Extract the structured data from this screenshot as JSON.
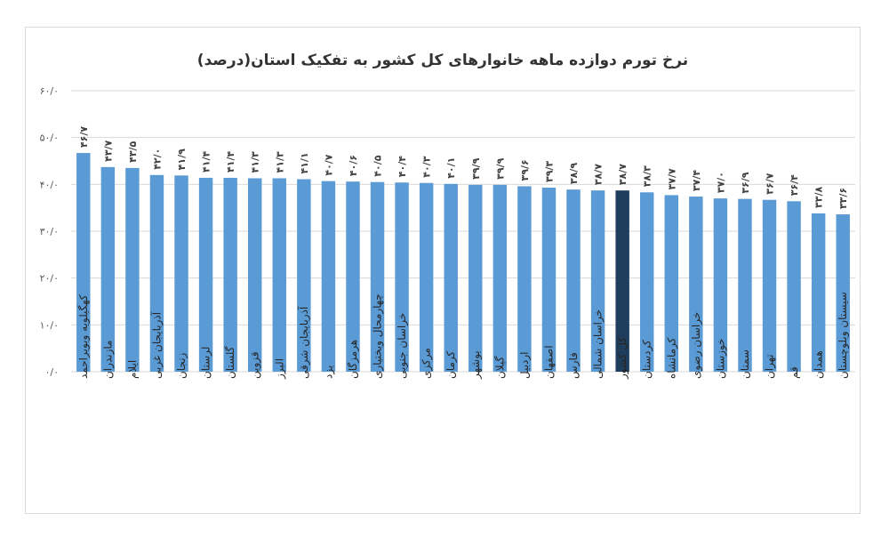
{
  "chart_data": {
    "type": "bar",
    "title": "نرخ تورم دوازده ماهه خانوارهای کل کشور به تفکیک استان(درصد)",
    "ylim": [
      0,
      60
    ],
    "yticks": [
      0,
      10,
      20,
      30,
      40,
      50,
      60
    ],
    "ytick_labels": [
      "۰/۰",
      "۱۰/۰",
      "۲۰/۰",
      "۳۰/۰",
      "۴۰/۰",
      "۵۰/۰",
      "۶۰/۰"
    ],
    "grid": true,
    "bar_color": "#5b9bd5",
    "highlight_color": "#1f3d5c",
    "highlight_category": "کل کشور",
    "categories": [
      "کهگیلویه وبویراحمد",
      "مازندران",
      "ایلام",
      "آذربایجان غربی",
      "زنجان",
      "لرستان",
      "گلستان",
      "قزوین",
      "البرز",
      "آذربایجان شرقی",
      "یزد",
      "هرمزگان",
      "چهارمحال وبختیاری",
      "خراسان جنوبی",
      "مرکزی",
      "کرمان",
      "بوشهر",
      "گیلان",
      "اردبیل",
      "اصفهان",
      "فارس",
      "خراسان شمالی",
      "کل کشور",
      "کردستان",
      "کرمانشاه",
      "خراسان رضوی",
      "خوزستان",
      "سمنان",
      "تهران",
      "قم",
      "همدان",
      "سیستان وبلوچستان"
    ],
    "values": [
      46.7,
      43.7,
      43.5,
      42.0,
      41.9,
      41.4,
      41.4,
      41.3,
      41.3,
      41.1,
      40.7,
      40.6,
      40.5,
      40.4,
      40.3,
      40.1,
      39.9,
      39.9,
      39.6,
      39.3,
      38.9,
      38.7,
      38.7,
      38.3,
      37.7,
      37.4,
      37.0,
      36.9,
      36.7,
      36.4,
      33.8,
      33.6
    ],
    "value_labels": [
      "۴۶/۷",
      "۴۳/۷",
      "۴۳/۵",
      "۴۲/۰",
      "۴۱/۹",
      "۴۱/۴",
      "۴۱/۴",
      "۴۱/۳",
      "۴۱/۳",
      "۴۱/۱",
      "۴۰/۷",
      "۴۰/۶",
      "۴۰/۵",
      "۴۰/۴",
      "۴۰/۳",
      "۴۰/۱",
      "۳۹/۹",
      "۳۹/۹",
      "۳۹/۶",
      "۳۹/۳",
      "۳۸/۹",
      "۳۸/۷",
      "۳۸/۷",
      "۳۸/۳",
      "۳۷/۷",
      "۳۷/۴",
      "۳۷/۰",
      "۳۶/۹",
      "۳۶/۷",
      "۳۶/۴",
      "۳۳/۸",
      "۳۳/۶"
    ]
  }
}
